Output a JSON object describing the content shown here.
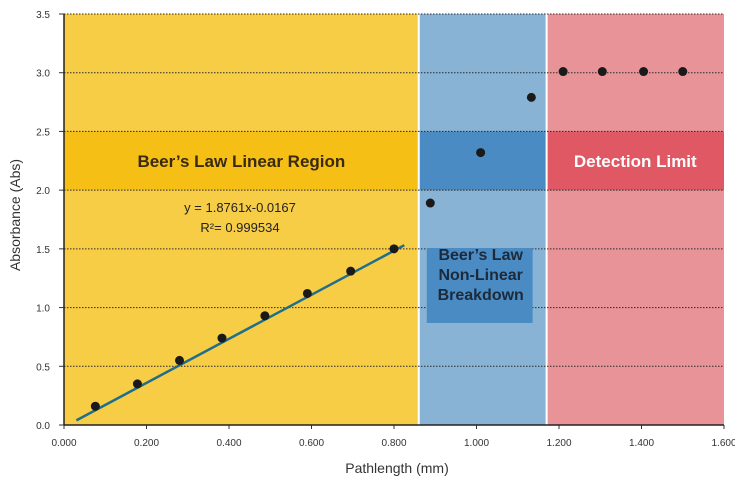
{
  "chart_data": {
    "type": "scatter",
    "xlabel": "Pathlength (mm)",
    "ylabel": "Absorbance (Abs)",
    "xlim": [
      0,
      1.6
    ],
    "ylim": [
      0,
      3.5
    ],
    "x_ticks": [
      "0.000",
      "0.200",
      "0.400",
      "0.600",
      "0.800",
      "1.000",
      "1.200",
      "1.400",
      "1.600"
    ],
    "y_ticks": [
      "0.0",
      "0.5",
      "1.0",
      "1.5",
      "2.0",
      "2.5",
      "3.0",
      "3.5"
    ],
    "grid": "horizontal dotted",
    "regions": [
      {
        "label": "Beer’s Law Linear Region",
        "x_start": 0,
        "x_end": 0.86,
        "color": "#f8cd46",
        "band_color": "#f6bf16"
      },
      {
        "label": "Beer’s Law Non-Linear Breakdown",
        "label_lines": [
          "Beer’s Law",
          "Non-Linear",
          "Breakdown"
        ],
        "x_start": 0.86,
        "x_end": 1.17,
        "color": "#89b3d4",
        "band_color": "#4a8bc4"
      },
      {
        "label": "Detection Limit",
        "x_start": 1.17,
        "x_end": 1.6,
        "color": "#e89398",
        "band_color": "#df5864"
      }
    ],
    "series": [
      {
        "points": [
          [
            0.076,
            0.16
          ],
          [
            0.178,
            0.35
          ],
          [
            0.28,
            0.55
          ],
          [
            0.383,
            0.74
          ],
          [
            0.487,
            0.93
          ],
          [
            0.59,
            1.12
          ],
          [
            0.695,
            1.31
          ],
          [
            0.8,
            1.5
          ],
          [
            0.888,
            1.89
          ],
          [
            1.01,
            2.32
          ],
          [
            1.133,
            2.79
          ],
          [
            1.21,
            3.01
          ],
          [
            1.305,
            3.01
          ],
          [
            1.405,
            3.01
          ],
          [
            1.5,
            3.01
          ]
        ],
        "marker_color": "#1a1a1a"
      }
    ],
    "trendline": {
      "x_range": [
        0.03,
        0.825
      ],
      "slope": 1.8761,
      "intercept": -0.0167,
      "color": "#1f6e8c",
      "equation": "y = 1.8761x-0.0167",
      "r2": "R²= 0.999534"
    }
  }
}
